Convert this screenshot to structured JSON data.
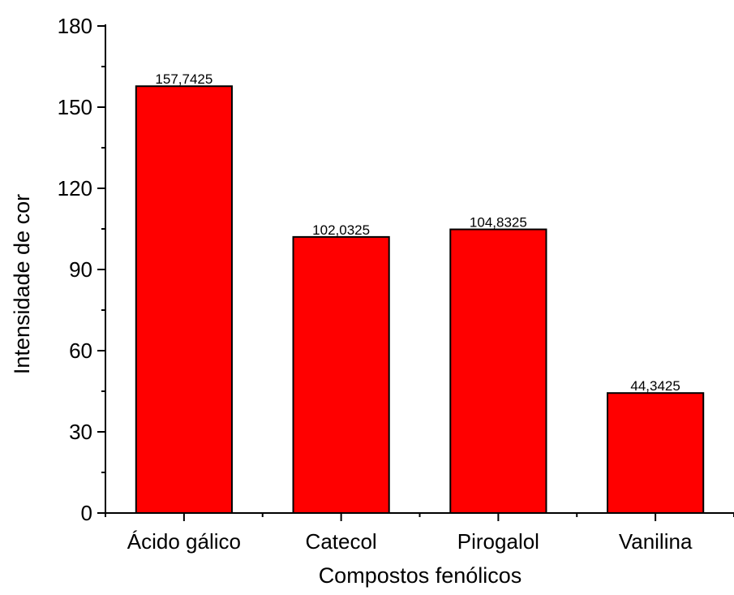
{
  "chart_data": {
    "type": "bar",
    "categories": [
      "Ácido gálico",
      "Catecol",
      "Pirogalol",
      "Vanilina"
    ],
    "values": [
      157.7425,
      102.0325,
      104.8325,
      44.3425
    ],
    "data_labels": [
      "157,7425",
      "102,0325",
      "104,8325",
      "44,3425"
    ],
    "xlabel": "Compostos fenólicos",
    "ylabel": "Intensidade de cor",
    "ylim": [
      0,
      180
    ],
    "yticks": [
      0,
      30,
      60,
      90,
      120,
      150,
      180
    ],
    "ytick_labels": [
      "0",
      "30",
      "60",
      "90",
      "120",
      "150",
      "180"
    ],
    "grid": false,
    "colors": {
      "bar_fill": "#ff0000",
      "bar_stroke": "#000000",
      "axis": "#000000"
    }
  }
}
